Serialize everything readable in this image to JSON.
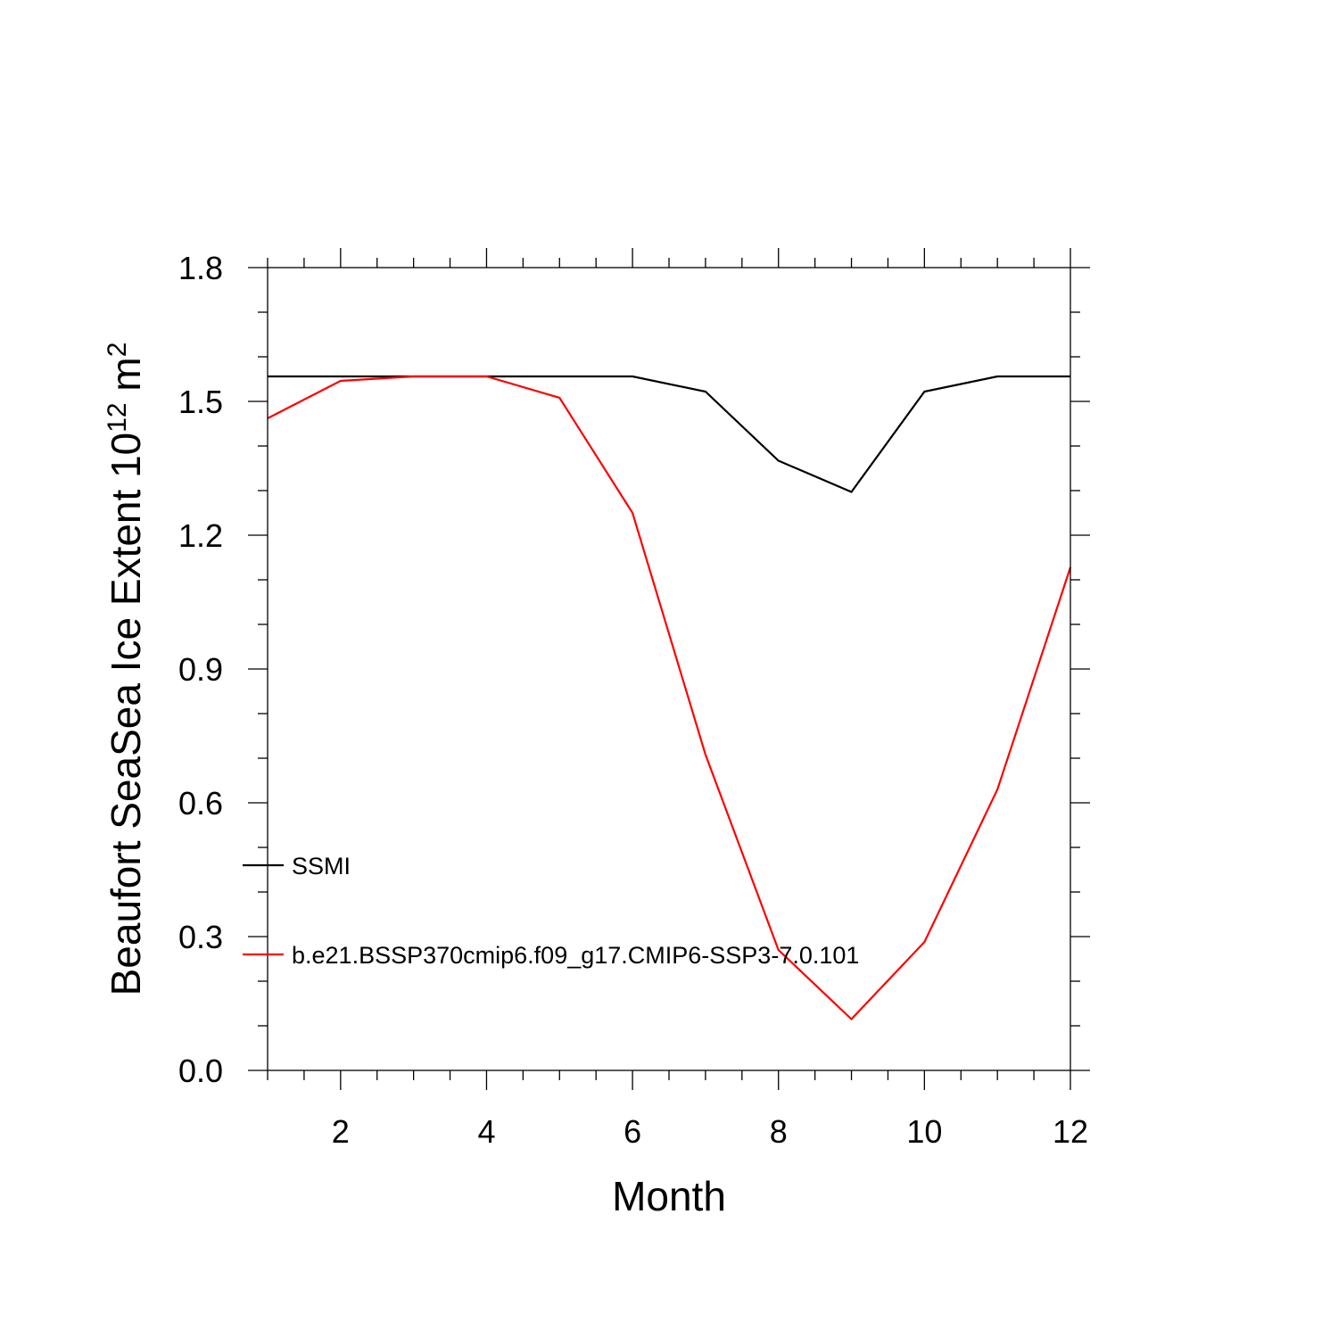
{
  "chart_data": {
    "type": "line",
    "title": "",
    "xlabel": "Month",
    "ylabel": "Beaufort SeaSea Ice Extent 10",
    "ylabel_sup1": "12",
    "ylabel_unit": " m",
    "ylabel_sup2": "2",
    "xlim": [
      1,
      12
    ],
    "ylim": [
      0.0,
      1.8
    ],
    "x_ticks": [
      2,
      4,
      6,
      8,
      10,
      12
    ],
    "x_tick_labels": [
      "2",
      "4",
      "6",
      "8",
      "10",
      "12"
    ],
    "y_ticks": [
      0.0,
      0.3,
      0.6,
      0.9,
      1.2,
      1.5,
      1.8
    ],
    "y_tick_labels": [
      "0.0",
      "0.3",
      "0.6",
      "0.9",
      "1.2",
      "1.5",
      "1.8"
    ],
    "grid": false,
    "legend_position": "lower-left",
    "x": [
      1,
      2,
      3,
      4,
      5,
      6,
      7,
      8,
      9,
      10,
      11,
      12
    ],
    "series": [
      {
        "name": "SSMI",
        "color": "#000000",
        "values": [
          1.556,
          1.556,
          1.556,
          1.556,
          1.556,
          1.556,
          1.522,
          1.367,
          1.297,
          1.522,
          1.556,
          1.556
        ]
      },
      {
        "name": "b.e21.BSSP370cmip6.f09_g17.CMIP6-SSP3-7.0.101",
        "color": "#ff0000",
        "values": [
          1.462,
          1.546,
          1.556,
          1.556,
          1.508,
          1.25,
          0.708,
          0.27,
          0.115,
          0.288,
          0.63,
          1.128
        ]
      }
    ]
  }
}
